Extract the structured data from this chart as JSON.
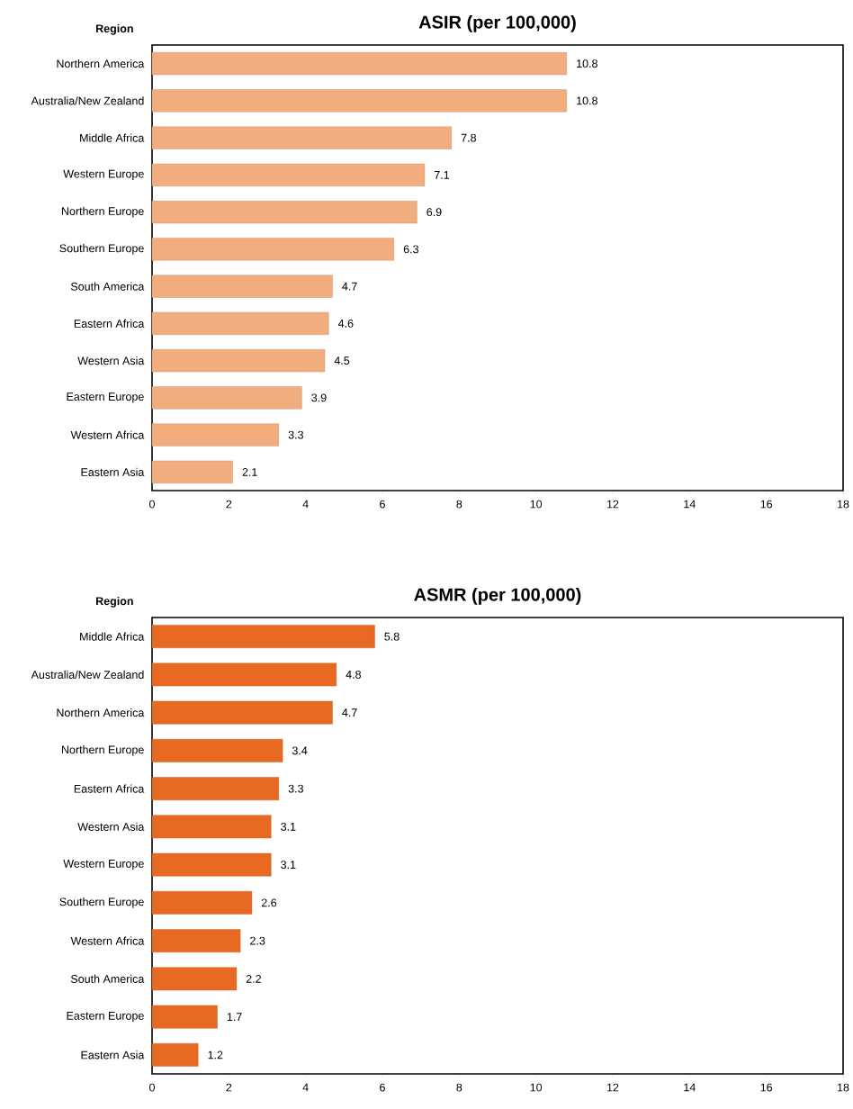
{
  "chart_data": [
    {
      "type": "bar",
      "orientation": "horizontal",
      "title": "ASIR (per 100,000)",
      "ylabel": "Region",
      "categories": [
        "Northern America",
        "Australia/New Zealand",
        "Middle Africa",
        "Western Europe",
        "Northern Europe",
        "Southern Europe",
        "South America",
        "Eastern Africa",
        "Western Asia",
        "Eastern Europe",
        "Western Africa",
        "Eastern Asia"
      ],
      "values": [
        10.8,
        10.8,
        7.8,
        7.1,
        6.9,
        6.3,
        4.7,
        4.6,
        4.5,
        3.9,
        3.3,
        2.1
      ],
      "color": "#f2ad7e",
      "xlim": [
        0,
        18
      ],
      "xticks": [
        0,
        2,
        4,
        6,
        8,
        10,
        12,
        14,
        16,
        18
      ],
      "data_labels": true
    },
    {
      "type": "bar",
      "orientation": "horizontal",
      "title": "ASMR (per 100,000)",
      "ylabel": "Region",
      "categories": [
        "Middle Africa",
        "Australia/New Zealand",
        "Northern America",
        "Northern Europe",
        "Eastern Africa",
        "Western Asia",
        "Western Europe",
        "Southern Europe",
        "Western Africa",
        "South America",
        "Eastern Europe",
        "Eastern Asia"
      ],
      "values": [
        5.8,
        4.8,
        4.7,
        3.4,
        3.3,
        3.1,
        3.1,
        2.6,
        2.3,
        2.2,
        1.7,
        1.2
      ],
      "color": "#e86a22",
      "xlim": [
        0,
        18
      ],
      "xticks": [
        0,
        2,
        4,
        6,
        8,
        10,
        12,
        14,
        16,
        18
      ],
      "data_labels": true
    }
  ]
}
